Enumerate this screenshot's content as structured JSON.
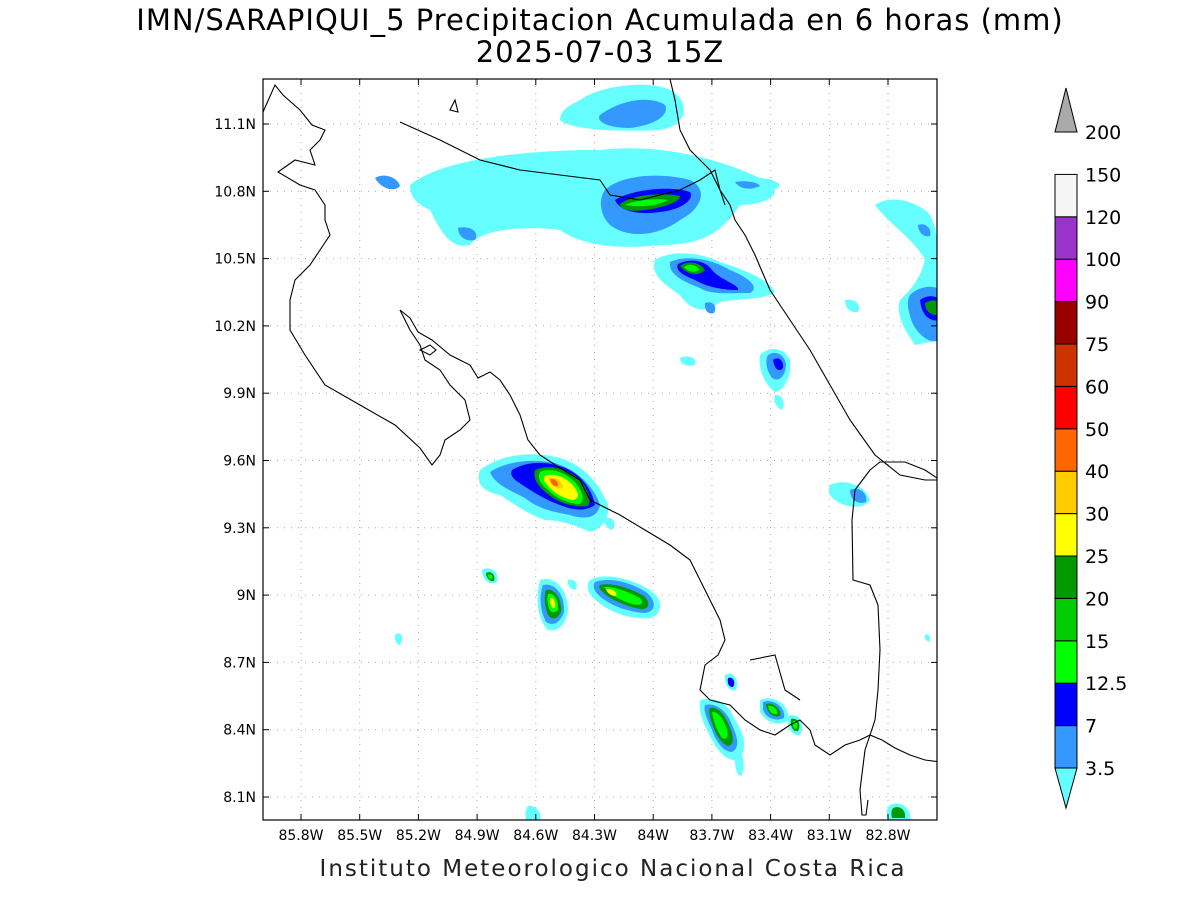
{
  "title": {
    "line1": "IMN/SARAPIQUI_5 Precipitacion Acumulada en 6 horas (mm)",
    "line2": "2025-07-03 15Z"
  },
  "footer": "Instituto Meteorologico Nacional Costa Rica",
  "map": {
    "lat_ticks": [
      "11.1N",
      "10.8N",
      "10.5N",
      "10.2N",
      "9.9N",
      "9.6N",
      "9.3N",
      "9N",
      "8.7N",
      "8.4N",
      "8.1N"
    ],
    "lon_ticks": [
      "85.8W",
      "85.5W",
      "85.2W",
      "84.9W",
      "84.6W",
      "84.3W",
      "84W",
      "83.7W",
      "83.4W",
      "83.1W",
      "82.8W"
    ]
  },
  "colorbar": {
    "levels": [
      "3.5",
      "7",
      "12.5",
      "15",
      "20",
      "25",
      "30",
      "40",
      "50",
      "60",
      "75",
      "90",
      "100",
      "120",
      "150",
      "200"
    ],
    "colors": [
      "#66ffff",
      "#3399ff",
      "#0000ff",
      "#00ff00",
      "#00cc00",
      "#009900",
      "#ffff00",
      "#ffcc00",
      "#ff6600",
      "#ff0000",
      "#cc3300",
      "#990000",
      "#ff00ff",
      "#9933cc",
      "#f5f5f5",
      "#aaaaaa"
    ]
  }
}
